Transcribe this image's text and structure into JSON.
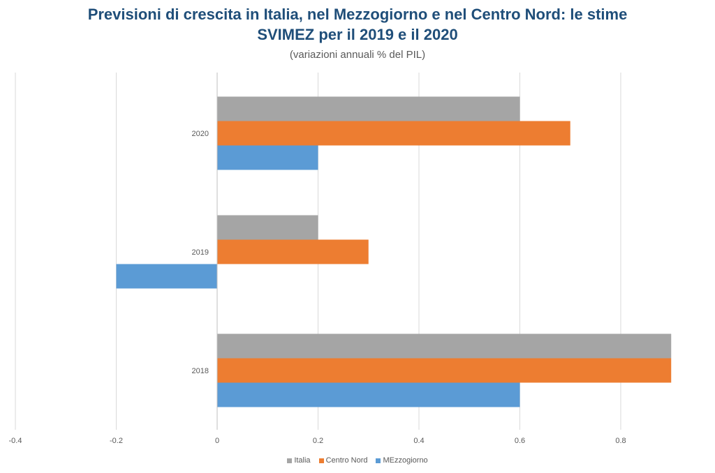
{
  "chart_data": {
    "type": "bar",
    "orientation": "horizontal",
    "title_line1": "Previsioni di crescita in Italia, nel Mezzogiorno e nel Centro Nord: le stime",
    "title_line2": "SVIMEZ per il 2019 e il 2020",
    "subtitle": "(variazioni annuali % del PIL)",
    "categories": [
      "2020",
      "2019",
      "2018"
    ],
    "series": [
      {
        "name": "Italia",
        "color": "#a5a5a5",
        "values": [
          0.6,
          0.2,
          0.9
        ]
      },
      {
        "name": "Centro Nord",
        "color": "#ed7d31",
        "values": [
          0.7,
          0.3,
          0.9
        ]
      },
      {
        "name": "MEzzogiorno",
        "color": "#5b9bd5",
        "values": [
          0.2,
          -0.2,
          0.6
        ]
      }
    ],
    "xlim": [
      -0.4,
      0.9
    ],
    "xticks": [
      "-0.4",
      "-0.2",
      "0",
      "0.2",
      "0.4",
      "0.6",
      "0.8"
    ],
    "grid": true,
    "legend_position": "bottom"
  }
}
